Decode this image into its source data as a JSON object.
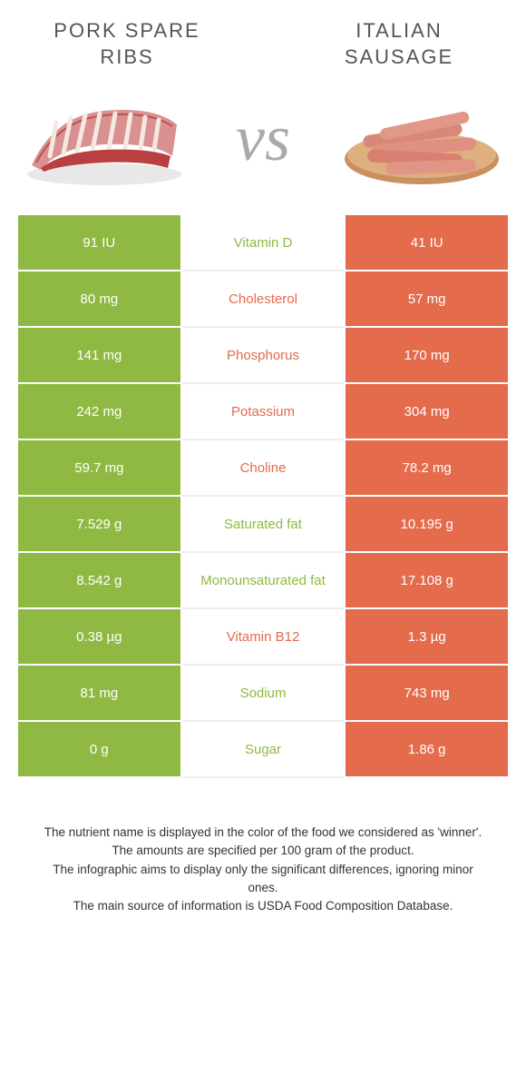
{
  "left": {
    "title": "Pork spare ribs"
  },
  "right": {
    "title": "Italian sausage"
  },
  "vs": "vs",
  "colors": {
    "green": "#8fb943",
    "orange": "#e46b4c"
  },
  "rows": [
    {
      "left": "91 IU",
      "nutrient": "Vitamin D",
      "color": "green",
      "right": "41 IU"
    },
    {
      "left": "80 mg",
      "nutrient": "Cholesterol",
      "color": "orange",
      "right": "57 mg"
    },
    {
      "left": "141 mg",
      "nutrient": "Phosphorus",
      "color": "orange",
      "right": "170 mg"
    },
    {
      "left": "242 mg",
      "nutrient": "Potassium",
      "color": "orange",
      "right": "304 mg"
    },
    {
      "left": "59.7 mg",
      "nutrient": "Choline",
      "color": "orange",
      "right": "78.2 mg"
    },
    {
      "left": "7.529 g",
      "nutrient": "Saturated fat",
      "color": "green",
      "right": "10.195 g"
    },
    {
      "left": "8.542 g",
      "nutrient": "Monounsaturated fat",
      "color": "green",
      "right": "17.108 g"
    },
    {
      "left": "0.38 µg",
      "nutrient": "Vitamin B12",
      "color": "orange",
      "right": "1.3 µg"
    },
    {
      "left": "81 mg",
      "nutrient": "Sodium",
      "color": "green",
      "right": "743 mg"
    },
    {
      "left": "0 g",
      "nutrient": "Sugar",
      "color": "green",
      "right": "1.86 g"
    }
  ],
  "footnote": {
    "l1": "The nutrient name is displayed in the color of the food we considered as 'winner'.",
    "l2": "The amounts are specified per 100 gram of the product.",
    "l3": "The infographic aims to display only the significant differences, ignoring minor ones.",
    "l4": "The main source of information is USDA Food Composition Database."
  }
}
